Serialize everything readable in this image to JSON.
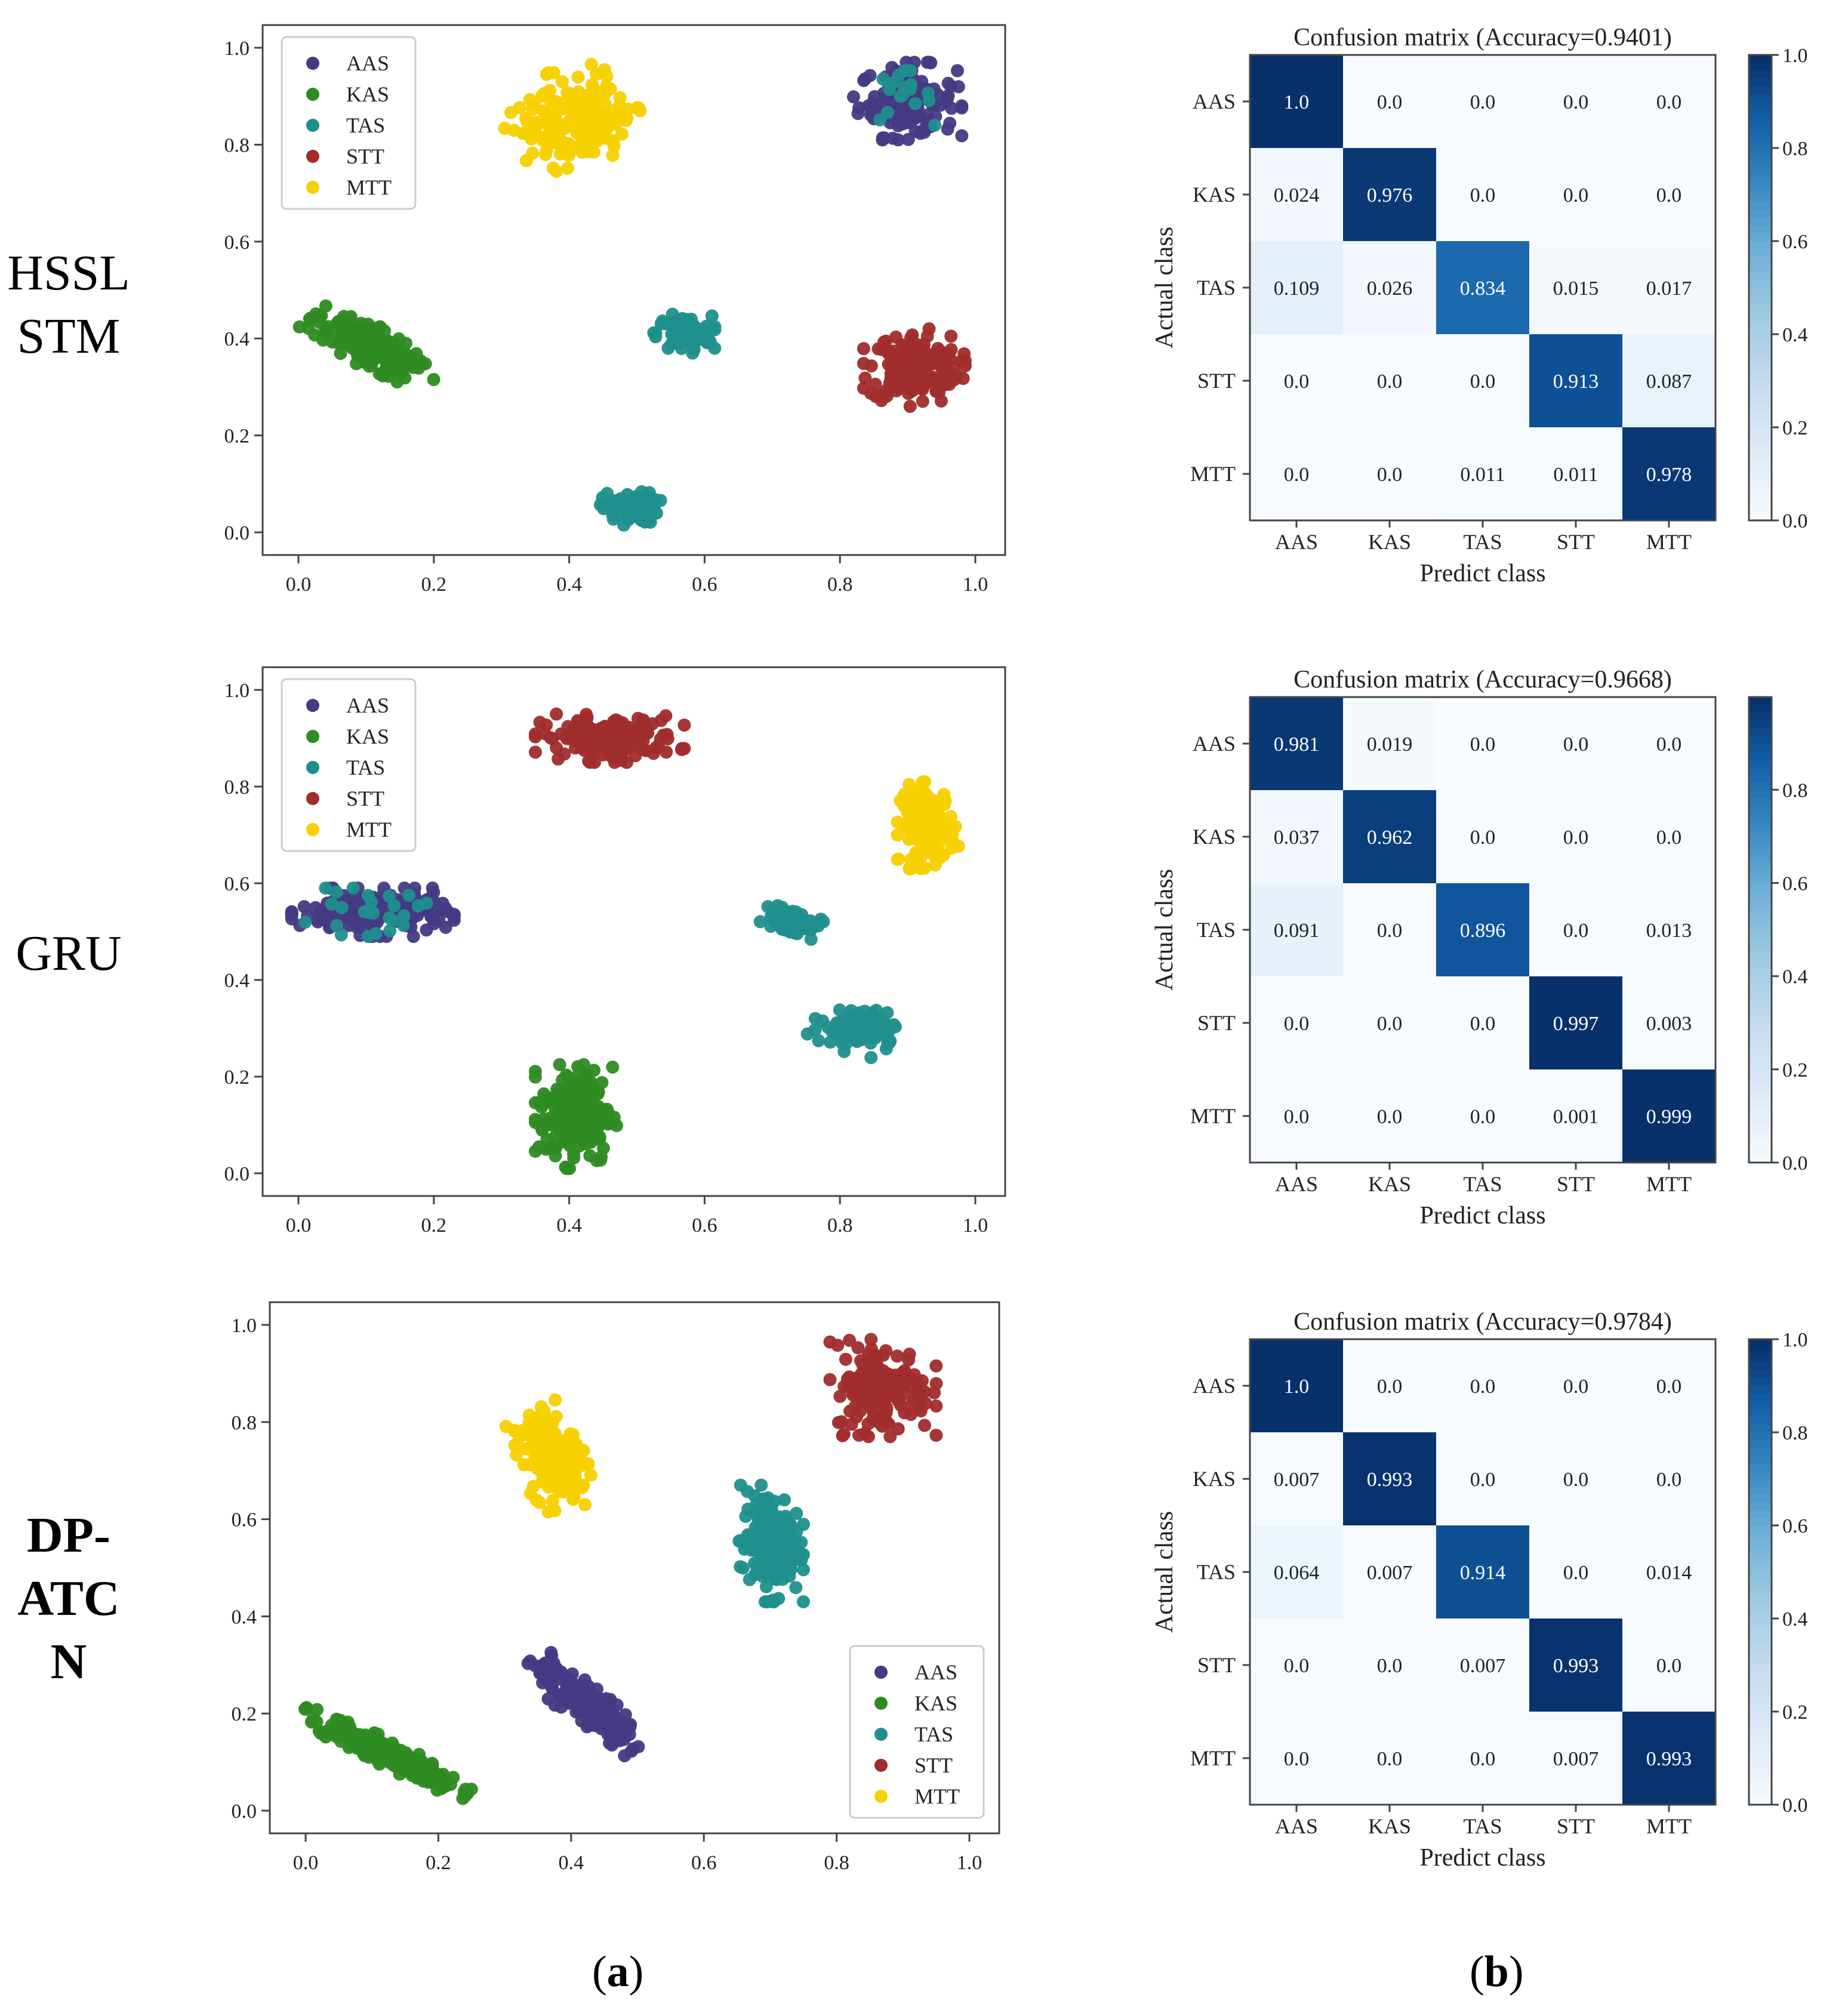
{
  "row_labels": [
    {
      "lines": [
        "HSSL",
        "STM"
      ],
      "bold": false
    },
    {
      "lines": [
        "GRU"
      ],
      "bold": false
    },
    {
      "lines": [
        "DP-",
        "ATC",
        "N"
      ],
      "bold": true
    }
  ],
  "panel_labels": [
    "a",
    "b"
  ],
  "colors": {
    "AAS": "#443a83",
    "KAS": "#2e8b22",
    "TAS": "#1f8f8c",
    "STT": "#a02c2c",
    "MTT": "#f7d000",
    "cm_low": "#f7fbff",
    "cm_high": "#08306b",
    "axis": "#444444"
  },
  "chart_data": [
    {
      "type": "scatter",
      "model": "HSSL STM",
      "xlim": [
        0,
        1
      ],
      "ylim": [
        0,
        1
      ],
      "xticks": [
        "0.0",
        "0.2",
        "0.4",
        "0.6",
        "0.8",
        "1.0"
      ],
      "yticks": [
        "0.0",
        "0.2",
        "0.4",
        "0.6",
        "0.8",
        "1.0"
      ],
      "legend": [
        "AAS",
        "KAS",
        "TAS",
        "STT",
        "MTT"
      ],
      "legend_position": "upper-left",
      "clusters": [
        {
          "label": "MTT",
          "cx": 0.41,
          "cy": 0.85,
          "rx": 0.09,
          "ry": 0.11,
          "angle": -35,
          "n": 180
        },
        {
          "label": "AAS",
          "cx": 0.9,
          "cy": 0.89,
          "rx": 0.08,
          "ry": 0.08,
          "angle": 0,
          "n": 130
        },
        {
          "label": "TAS",
          "cx": 0.89,
          "cy": 0.9,
          "rx": 0.05,
          "ry": 0.06,
          "angle": 0,
          "n": 18
        },
        {
          "label": "KAS",
          "cx": 0.11,
          "cy": 0.38,
          "rx": 0.11,
          "ry": 0.04,
          "angle": -42,
          "n": 200
        },
        {
          "label": "TAS",
          "cx": 0.57,
          "cy": 0.41,
          "rx": 0.045,
          "ry": 0.04,
          "angle": 0,
          "n": 90
        },
        {
          "label": "STT",
          "cx": 0.91,
          "cy": 0.34,
          "rx": 0.075,
          "ry": 0.08,
          "angle": 0,
          "n": 160
        },
        {
          "label": "TAS",
          "cx": 0.49,
          "cy": 0.05,
          "rx": 0.045,
          "ry": 0.035,
          "angle": 0,
          "n": 80
        }
      ]
    },
    {
      "type": "heatmap",
      "model": "HSSL STM",
      "title": "Confusion matrix (Accuracy=0.9401)",
      "xlabel": "Predict class",
      "ylabel": "Actual class",
      "labels": [
        "AAS",
        "KAS",
        "TAS",
        "STT",
        "MTT"
      ],
      "matrix": [
        [
          "1.0",
          "0.0",
          "0.0",
          "0.0",
          "0.0"
        ],
        [
          "0.024",
          "0.976",
          "0.0",
          "0.0",
          "0.0"
        ],
        [
          "0.109",
          "0.026",
          "0.834",
          "0.015",
          "0.017"
        ],
        [
          "0.0",
          "0.0",
          "0.0",
          "0.913",
          "0.087"
        ],
        [
          "0.0",
          "0.0",
          "0.011",
          "0.011",
          "0.978"
        ]
      ],
      "colorbar_max": 1.0,
      "colorbar_ticks": [
        "0.0",
        "0.2",
        "0.4",
        "0.6",
        "0.8",
        "1.0"
      ]
    },
    {
      "type": "scatter",
      "model": "GRU",
      "xlim": [
        0,
        1
      ],
      "ylim": [
        0,
        1
      ],
      "xticks": [
        "0.0",
        "0.2",
        "0.4",
        "0.6",
        "0.8",
        "1.0"
      ],
      "yticks": [
        "0.0",
        "0.2",
        "0.4",
        "0.6",
        "0.8",
        "1.0"
      ],
      "legend": [
        "AAS",
        "KAS",
        "TAS",
        "STT",
        "MTT"
      ],
      "legend_position": "upper-left",
      "clusters": [
        {
          "label": "STT",
          "cx": 0.46,
          "cy": 0.9,
          "rx": 0.11,
          "ry": 0.05,
          "angle": 0,
          "n": 160
        },
        {
          "label": "MTT",
          "cx": 0.93,
          "cy": 0.72,
          "rx": 0.045,
          "ry": 0.09,
          "angle": 0,
          "n": 130
        },
        {
          "label": "AAS",
          "cx": 0.11,
          "cy": 0.54,
          "rx": 0.12,
          "ry": 0.05,
          "angle": 0,
          "n": 220
        },
        {
          "label": "TAS",
          "cx": 0.1,
          "cy": 0.54,
          "rx": 0.09,
          "ry": 0.05,
          "angle": 0,
          "n": 25
        },
        {
          "label": "TAS",
          "cx": 0.73,
          "cy": 0.52,
          "rx": 0.045,
          "ry": 0.03,
          "angle": -20,
          "n": 70
        },
        {
          "label": "TAS",
          "cx": 0.82,
          "cy": 0.3,
          "rx": 0.06,
          "ry": 0.05,
          "angle": -20,
          "n": 90
        },
        {
          "label": "KAS",
          "cx": 0.41,
          "cy": 0.12,
          "rx": 0.06,
          "ry": 0.11,
          "angle": 0,
          "n": 200
        }
      ]
    },
    {
      "type": "heatmap",
      "model": "GRU",
      "title": "Confusion matrix (Accuracy=0.9668)",
      "xlabel": "Predict class",
      "ylabel": "Actual class",
      "labels": [
        "AAS",
        "KAS",
        "TAS",
        "STT",
        "MTT"
      ],
      "matrix": [
        [
          "0.981",
          "0.019",
          "0.0",
          "0.0",
          "0.0"
        ],
        [
          "0.037",
          "0.962",
          "0.0",
          "0.0",
          "0.0"
        ],
        [
          "0.091",
          "0.0",
          "0.896",
          "0.0",
          "0.013"
        ],
        [
          "0.0",
          "0.0",
          "0.0",
          "0.997",
          "0.003"
        ],
        [
          "0.0",
          "0.0",
          "0.0",
          "0.001",
          "0.999"
        ]
      ],
      "colorbar_max": 0.999,
      "colorbar_ticks": [
        "0.0",
        "0.2",
        "0.4",
        "0.6",
        "0.8"
      ]
    },
    {
      "type": "scatter",
      "model": "DP-ATCN",
      "xlim": [
        0,
        1
      ],
      "ylim": [
        0,
        1
      ],
      "xticks": [
        "0.0",
        "0.2",
        "0.4",
        "0.6",
        "0.8",
        "1.0"
      ],
      "yticks": [
        "0.0",
        "0.2",
        "0.4",
        "0.6",
        "0.8",
        "1.0"
      ],
      "legend": [
        "AAS",
        "KAS",
        "TAS",
        "STT",
        "MTT"
      ],
      "legend_position": "lower-right",
      "clusters": [
        {
          "label": "STT",
          "cx": 0.87,
          "cy": 0.87,
          "rx": 0.08,
          "ry": 0.1,
          "angle": 0,
          "n": 160
        },
        {
          "label": "MTT",
          "cx": 0.37,
          "cy": 0.73,
          "rx": 0.05,
          "ry": 0.11,
          "angle": 15,
          "n": 170
        },
        {
          "label": "TAS",
          "cx": 0.7,
          "cy": 0.55,
          "rx": 0.05,
          "ry": 0.12,
          "angle": 0,
          "n": 160
        },
        {
          "label": "AAS",
          "cx": 0.42,
          "cy": 0.22,
          "rx": 0.12,
          "ry": 0.035,
          "angle": -48,
          "n": 180
        },
        {
          "label": "KAS",
          "cx": 0.12,
          "cy": 0.12,
          "rx": 0.15,
          "ry": 0.025,
          "angle": -34,
          "n": 220
        }
      ]
    },
    {
      "type": "heatmap",
      "model": "DP-ATCN",
      "title": "Confusion matrix (Accuracy=0.9784)",
      "xlabel": "Predict class",
      "ylabel": "Actual class",
      "labels": [
        "AAS",
        "KAS",
        "TAS",
        "STT",
        "MTT"
      ],
      "matrix": [
        [
          "1.0",
          "0.0",
          "0.0",
          "0.0",
          "0.0"
        ],
        [
          "0.007",
          "0.993",
          "0.0",
          "0.0",
          "0.0"
        ],
        [
          "0.064",
          "0.007",
          "0.914",
          "0.0",
          "0.014"
        ],
        [
          "0.0",
          "0.0",
          "0.007",
          "0.993",
          "0.0"
        ],
        [
          "0.0",
          "0.0",
          "0.0",
          "0.007",
          "0.993"
        ]
      ],
      "colorbar_max": 1.0,
      "colorbar_ticks": [
        "0.0",
        "0.2",
        "0.4",
        "0.6",
        "0.8",
        "1.0"
      ]
    }
  ]
}
